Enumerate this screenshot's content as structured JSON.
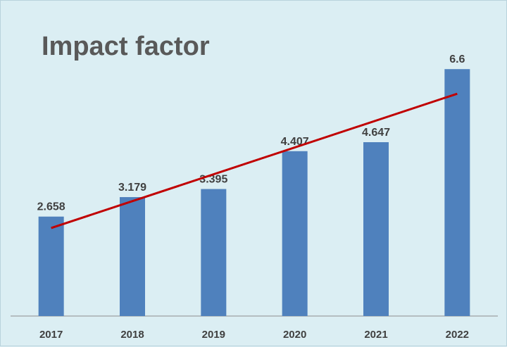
{
  "chart_data": {
    "type": "bar",
    "title": "Impact factor",
    "xlabel": "",
    "ylabel": "",
    "categories": [
      "2017",
      "2018",
      "2019",
      "2020",
      "2021",
      "2022"
    ],
    "values": [
      2.658,
      3.179,
      3.395,
      4.407,
      4.647,
      6.6
    ],
    "data_labels": [
      "2.658",
      "3.179",
      "3.395",
      "4.407",
      "4.647",
      "6.6"
    ],
    "ylim": [
      0,
      7.3
    ],
    "grid": false,
    "legend": "none",
    "trendline": {
      "type": "linear",
      "color": "#c00000"
    },
    "colors": {
      "bar": "#4f81bd",
      "background": "#dbeef3",
      "axis": "#8c8c8c"
    }
  }
}
